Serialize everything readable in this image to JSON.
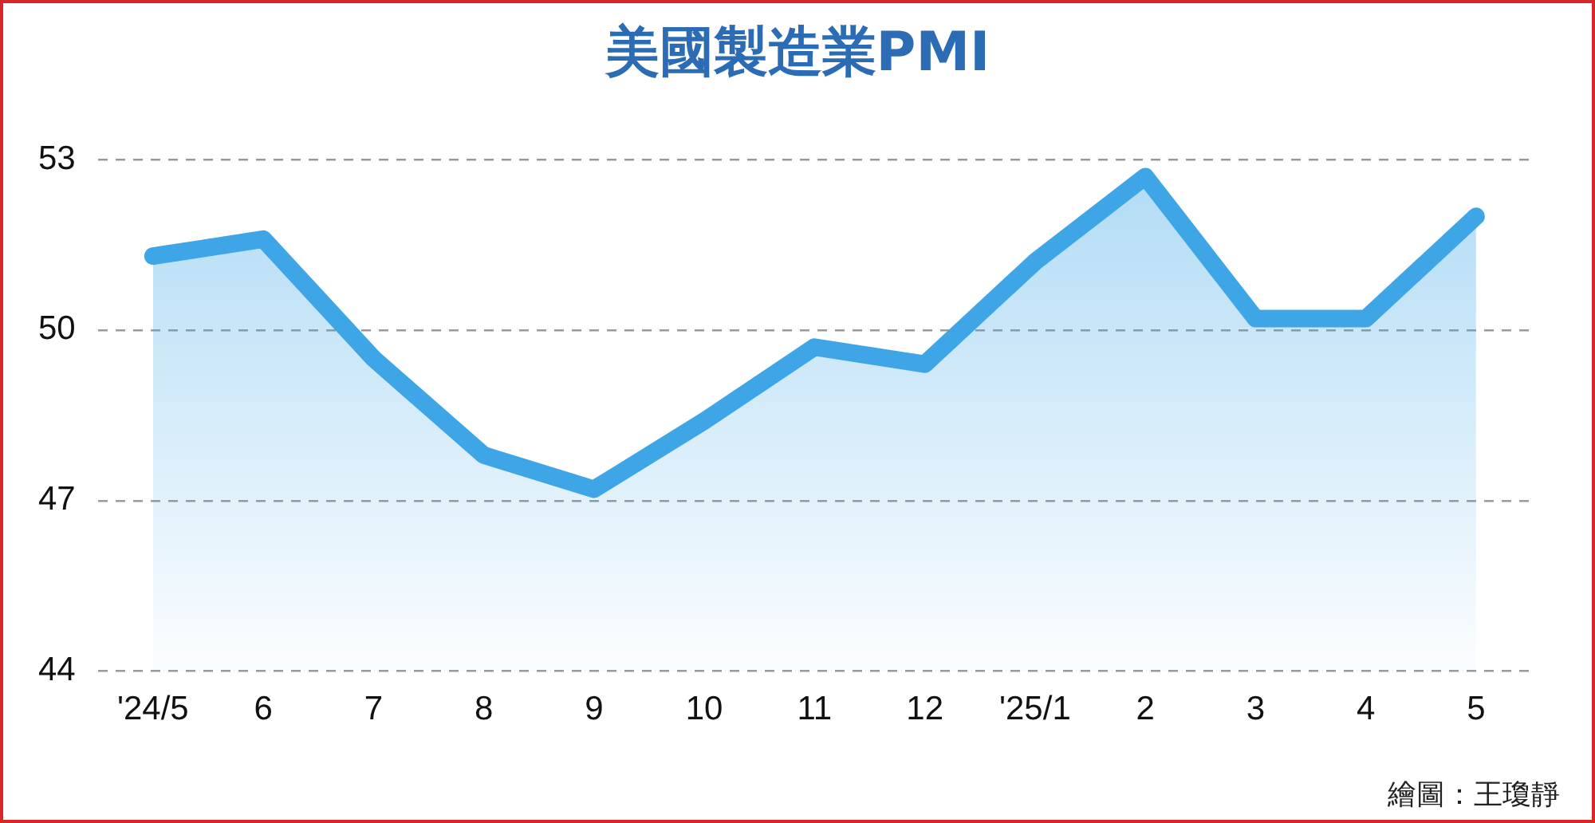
{
  "chart_data": {
    "type": "area",
    "title": "美國製造業PMI",
    "categories": [
      "'24/5",
      "6",
      "7",
      "8",
      "9",
      "10",
      "11",
      "12",
      "'25/1",
      "2",
      "3",
      "4",
      "5"
    ],
    "series": [
      {
        "color": "#3ea6e6",
        "values": [
          51.3,
          51.6,
          49.5,
          47.8,
          47.2,
          48.4,
          49.7,
          49.4,
          51.2,
          52.7,
          50.2,
          50.2,
          52.0
        ]
      }
    ],
    "ylim": [
      44,
      53
    ],
    "yticks": [
      44,
      47,
      50,
      53
    ],
    "grid": "y",
    "legend": false,
    "annotations": [
      "繪圖：王瓊靜"
    ]
  }
}
